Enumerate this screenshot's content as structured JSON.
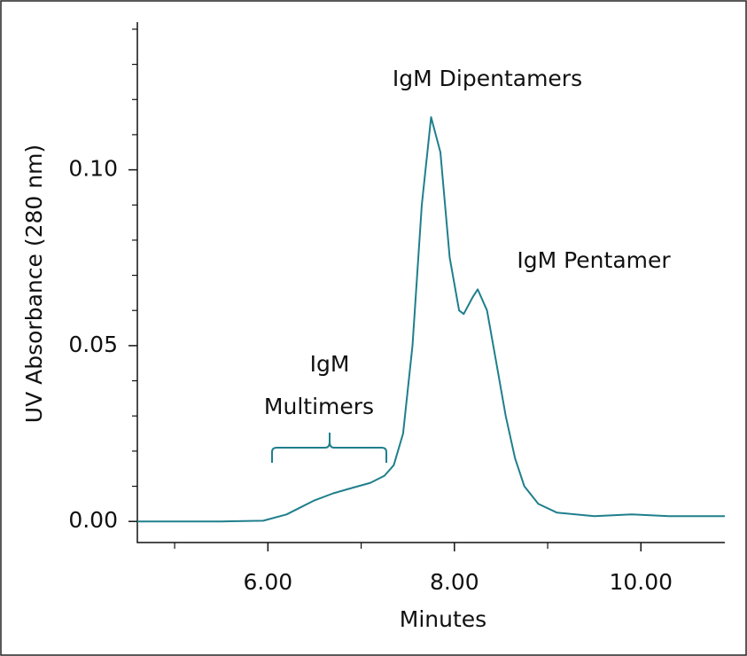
{
  "chart_data": {
    "type": "line",
    "x": [
      4.6,
      5.5,
      5.95,
      6.2,
      6.35,
      6.5,
      6.7,
      6.9,
      7.1,
      7.25,
      7.35,
      7.45,
      7.55,
      7.65,
      7.75,
      7.85,
      7.95,
      8.05,
      8.1,
      8.2,
      8.25,
      8.35,
      8.45,
      8.55,
      8.65,
      8.75,
      8.9,
      9.1,
      9.5,
      9.9,
      10.3,
      10.9
    ],
    "values": [
      0,
      0,
      0.0002,
      0.002,
      0.004,
      0.006,
      0.008,
      0.0095,
      0.011,
      0.013,
      0.016,
      0.025,
      0.05,
      0.09,
      0.115,
      0.105,
      0.075,
      0.06,
      0.059,
      0.064,
      0.066,
      0.06,
      0.045,
      0.03,
      0.018,
      0.01,
      0.005,
      0.0025,
      0.0015,
      0.002,
      0.0015,
      0.0015
    ],
    "color": "#1f7f8c",
    "xlabel": "Minutes",
    "ylabel": "UV Absorbance (280 nm)",
    "xlim": [
      4.6,
      10.9
    ],
    "ylim": [
      -0.006,
      0.142
    ],
    "xticks": [
      {
        "value": 6,
        "label": "6.00"
      },
      {
        "value": 8,
        "label": "8.00"
      },
      {
        "value": 10,
        "label": "10.00"
      }
    ],
    "xminor_ticks": [
      5,
      7,
      9
    ],
    "yticks": [
      {
        "value": 0,
        "label": "0.00"
      },
      {
        "value": 0.05,
        "label": "0.05"
      },
      {
        "value": 0.1,
        "label": "0.10"
      }
    ],
    "yminor_ticks": [
      0.01,
      0.02,
      0.03,
      0.04,
      0.06,
      0.07,
      0.08,
      0.09,
      0.11,
      0.12,
      0.13,
      0.14
    ],
    "annotations": [
      "IgM Dipentamers",
      "IgM Pentamer",
      "IgM",
      "Multimers"
    ]
  }
}
